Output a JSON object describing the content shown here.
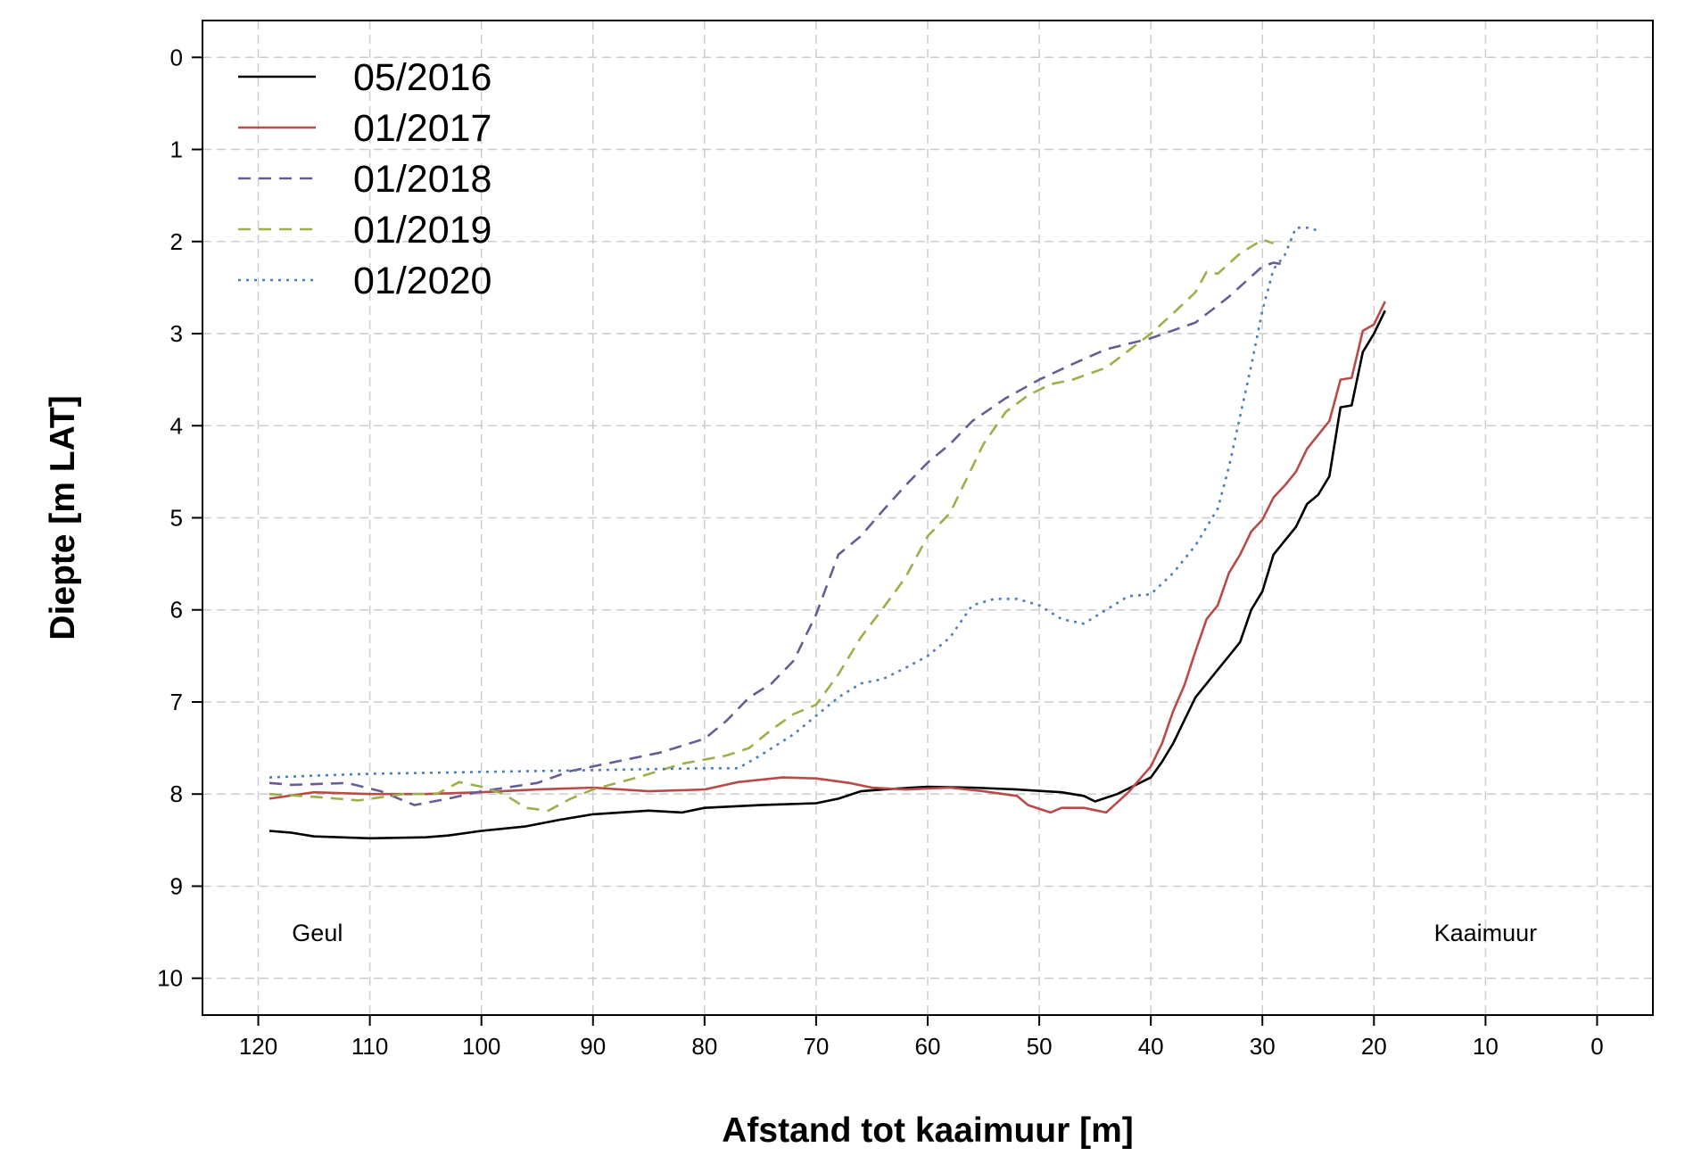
{
  "chart_data": {
    "type": "line",
    "xlabel": "Afstand tot kaaimuur [m]",
    "ylabel": "Diepte [m LAT]",
    "xlim": [
      125,
      -5
    ],
    "ylim": [
      10.4,
      -0.4
    ],
    "x_reversed": true,
    "y_reversed": true,
    "xticks": [
      120,
      110,
      100,
      90,
      80,
      70,
      60,
      50,
      40,
      30,
      20,
      10,
      0
    ],
    "yticks": [
      0,
      1,
      2,
      3,
      4,
      5,
      6,
      7,
      8,
      9,
      10
    ],
    "grid": true,
    "legend_position": "top-left",
    "annotations": [
      {
        "text": "Geul",
        "x": 114.7,
        "y": 9.5
      },
      {
        "text": "Kaaimuur",
        "x": 10,
        "y": 9.5
      }
    ],
    "series": [
      {
        "name": "05/2016",
        "color": "#000000",
        "dash": "solid",
        "points": [
          [
            119,
            8.4
          ],
          [
            117,
            8.42
          ],
          [
            115,
            8.46
          ],
          [
            110,
            8.48
          ],
          [
            105,
            8.47
          ],
          [
            103,
            8.45
          ],
          [
            100,
            8.4
          ],
          [
            96,
            8.35
          ],
          [
            93,
            8.28
          ],
          [
            90,
            8.22
          ],
          [
            85,
            8.18
          ],
          [
            82,
            8.2
          ],
          [
            80,
            8.15
          ],
          [
            75,
            8.12
          ],
          [
            70,
            8.1
          ],
          [
            68,
            8.05
          ],
          [
            66,
            7.97
          ],
          [
            64,
            7.95
          ],
          [
            60,
            7.92
          ],
          [
            56,
            7.93
          ],
          [
            52,
            7.95
          ],
          [
            48,
            7.98
          ],
          [
            46,
            8.02
          ],
          [
            45,
            8.08
          ],
          [
            43,
            8.0
          ],
          [
            41,
            7.88
          ],
          [
            40,
            7.82
          ],
          [
            39,
            7.65
          ],
          [
            38,
            7.45
          ],
          [
            37,
            7.2
          ],
          [
            36,
            6.95
          ],
          [
            35,
            6.8
          ],
          [
            34,
            6.65
          ],
          [
            33,
            6.5
          ],
          [
            32,
            6.35
          ],
          [
            31,
            6.0
          ],
          [
            30,
            5.8
          ],
          [
            29,
            5.4
          ],
          [
            28,
            5.25
          ],
          [
            27,
            5.1
          ],
          [
            26,
            4.85
          ],
          [
            25,
            4.75
          ],
          [
            24,
            4.55
          ],
          [
            23,
            3.8
          ],
          [
            22,
            3.78
          ],
          [
            21,
            3.2
          ],
          [
            20,
            3.0
          ],
          [
            19,
            2.75
          ]
        ]
      },
      {
        "name": "01/2017",
        "color": "#b94a48",
        "dash": "solid",
        "points": [
          [
            119,
            8.05
          ],
          [
            115,
            7.98
          ],
          [
            110,
            8.0
          ],
          [
            105,
            8.0
          ],
          [
            100,
            7.98
          ],
          [
            95,
            7.95
          ],
          [
            90,
            7.93
          ],
          [
            85,
            7.97
          ],
          [
            80,
            7.95
          ],
          [
            77,
            7.87
          ],
          [
            73,
            7.82
          ],
          [
            70,
            7.83
          ],
          [
            67,
            7.88
          ],
          [
            65,
            7.93
          ],
          [
            62,
            7.95
          ],
          [
            58,
            7.93
          ],
          [
            55,
            7.97
          ],
          [
            52,
            8.02
          ],
          [
            51,
            8.12
          ],
          [
            49,
            8.2
          ],
          [
            48,
            8.15
          ],
          [
            46,
            8.15
          ],
          [
            44,
            8.2
          ],
          [
            42,
            7.98
          ],
          [
            40,
            7.7
          ],
          [
            39,
            7.45
          ],
          [
            38,
            7.1
          ],
          [
            37,
            6.82
          ],
          [
            36,
            6.45
          ],
          [
            35,
            6.1
          ],
          [
            34,
            5.95
          ],
          [
            33,
            5.6
          ],
          [
            32,
            5.4
          ],
          [
            31,
            5.15
          ],
          [
            30,
            5.02
          ],
          [
            29,
            4.78
          ],
          [
            28,
            4.65
          ],
          [
            27,
            4.5
          ],
          [
            26,
            4.25
          ],
          [
            25,
            4.1
          ],
          [
            24,
            3.95
          ],
          [
            23,
            3.5
          ],
          [
            22,
            3.48
          ],
          [
            21,
            2.97
          ],
          [
            20,
            2.9
          ],
          [
            19,
            2.65
          ]
        ]
      },
      {
        "name": "01/2018",
        "color": "#6b5b95",
        "dash": "dashed",
        "points": [
          [
            119,
            7.88
          ],
          [
            117,
            7.9
          ],
          [
            112,
            7.88
          ],
          [
            109,
            7.97
          ],
          [
            106,
            8.12
          ],
          [
            103,
            8.05
          ],
          [
            100,
            7.97
          ],
          [
            95,
            7.88
          ],
          [
            92,
            7.75
          ],
          [
            88,
            7.65
          ],
          [
            84,
            7.55
          ],
          [
            80,
            7.4
          ],
          [
            78,
            7.2
          ],
          [
            76,
            6.95
          ],
          [
            74,
            6.8
          ],
          [
            72,
            6.55
          ],
          [
            70,
            6.05
          ],
          [
            68,
            5.4
          ],
          [
            66,
            5.2
          ],
          [
            64,
            4.92
          ],
          [
            62,
            4.65
          ],
          [
            60,
            4.4
          ],
          [
            58,
            4.2
          ],
          [
            56,
            3.95
          ],
          [
            53,
            3.7
          ],
          [
            50,
            3.5
          ],
          [
            47,
            3.33
          ],
          [
            44,
            3.17
          ],
          [
            40,
            3.05
          ],
          [
            36,
            2.88
          ],
          [
            33,
            2.6
          ],
          [
            30,
            2.27
          ],
          [
            29,
            2.23
          ],
          [
            28,
            2.25
          ]
        ]
      },
      {
        "name": "01/2019",
        "color": "#9bb04a",
        "dash": "dashed",
        "points": [
          [
            119,
            8.0
          ],
          [
            115,
            8.03
          ],
          [
            111,
            8.07
          ],
          [
            107,
            8.0
          ],
          [
            104,
            8.0
          ],
          [
            102,
            7.87
          ],
          [
            100,
            7.92
          ],
          [
            98,
            8.0
          ],
          [
            96,
            8.15
          ],
          [
            94,
            8.18
          ],
          [
            92,
            8.05
          ],
          [
            90,
            7.95
          ],
          [
            86,
            7.82
          ],
          [
            82,
            7.67
          ],
          [
            78,
            7.58
          ],
          [
            76,
            7.5
          ],
          [
            74,
            7.3
          ],
          [
            72,
            7.13
          ],
          [
            70,
            7.03
          ],
          [
            68,
            6.7
          ],
          [
            66,
            6.3
          ],
          [
            64,
            5.98
          ],
          [
            62,
            5.65
          ],
          [
            60,
            5.2
          ],
          [
            58,
            4.95
          ],
          [
            57,
            4.7
          ],
          [
            55,
            4.2
          ],
          [
            53,
            3.85
          ],
          [
            51,
            3.67
          ],
          [
            49,
            3.55
          ],
          [
            47,
            3.5
          ],
          [
            44,
            3.37
          ],
          [
            40,
            3.0
          ],
          [
            38,
            2.78
          ],
          [
            36,
            2.55
          ],
          [
            35,
            2.33
          ],
          [
            34,
            2.35
          ],
          [
            32,
            2.13
          ],
          [
            30,
            1.98
          ],
          [
            29,
            2.02
          ]
        ]
      },
      {
        "name": "01/2020",
        "color": "#4a7ebb",
        "dash": "dotted",
        "points": [
          [
            119,
            7.82
          ],
          [
            115,
            7.8
          ],
          [
            110,
            7.78
          ],
          [
            105,
            7.77
          ],
          [
            100,
            7.76
          ],
          [
            95,
            7.75
          ],
          [
            90,
            7.74
          ],
          [
            85,
            7.73
          ],
          [
            80,
            7.72
          ],
          [
            77,
            7.72
          ],
          [
            75,
            7.58
          ],
          [
            72,
            7.35
          ],
          [
            70,
            7.15
          ],
          [
            68,
            6.95
          ],
          [
            66,
            6.8
          ],
          [
            64,
            6.75
          ],
          [
            62,
            6.63
          ],
          [
            60,
            6.5
          ],
          [
            58,
            6.3
          ],
          [
            56,
            5.95
          ],
          [
            54,
            5.88
          ],
          [
            52,
            5.88
          ],
          [
            50,
            5.95
          ],
          [
            48,
            6.1
          ],
          [
            46,
            6.15
          ],
          [
            44,
            6.0
          ],
          [
            42,
            5.85
          ],
          [
            40,
            5.83
          ],
          [
            38,
            5.6
          ],
          [
            36,
            5.3
          ],
          [
            34,
            4.9
          ],
          [
            33,
            4.45
          ],
          [
            32,
            3.9
          ],
          [
            31,
            3.35
          ],
          [
            30,
            2.75
          ],
          [
            29,
            2.3
          ],
          [
            28,
            2.15
          ],
          [
            27,
            1.85
          ],
          [
            26,
            1.85
          ],
          [
            25,
            1.88
          ]
        ]
      }
    ]
  }
}
